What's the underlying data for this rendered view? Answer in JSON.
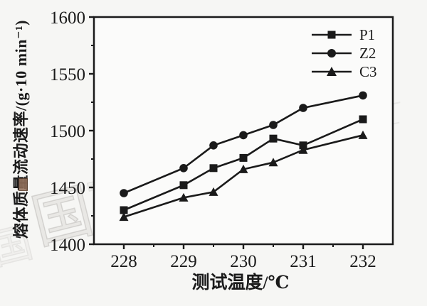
{
  "chart_data": {
    "type": "line",
    "title": "",
    "x": [
      228,
      229,
      229.5,
      230,
      230.5,
      231,
      232
    ],
    "series": [
      {
        "name": "P1",
        "marker": "square",
        "values": [
          1430,
          1452,
          1467,
          1476,
          1493,
          1487,
          1510
        ]
      },
      {
        "name": "Z2",
        "marker": "circle",
        "values": [
          1445,
          1467,
          1487,
          1496,
          1505,
          1520,
          1531
        ]
      },
      {
        "name": "C3",
        "marker": "triangle",
        "values": [
          1424,
          1441,
          1446,
          1466,
          1472,
          1483,
          1496
        ]
      }
    ],
    "xlabel": "测试温度/℃",
    "ylabel": "熔体质量流动速率/(g·10 min⁻¹)",
    "xlim": [
      227.5,
      232.5
    ],
    "ylim": [
      1400,
      1600
    ],
    "x_major_ticks": [
      228,
      229,
      230,
      231,
      232
    ],
    "x_minor_step": 0.5,
    "y_major_ticks": [
      1400,
      1450,
      1500,
      1550,
      1600
    ],
    "y_minor_step": 25,
    "grid": false,
    "legend_position": "top-right-inside",
    "line_color": "#1a1a1a",
    "marker_color": "#1a1a1a"
  },
  "watermark": {
    "char1": "国",
    "char2": "富"
  },
  "colors": {
    "background": "#f6f6f4",
    "plot_background": "#fbfbfa",
    "axis": "#1a1a1a",
    "watermark_gray": "#c9c7c3",
    "watermark_red": "#93705a"
  }
}
